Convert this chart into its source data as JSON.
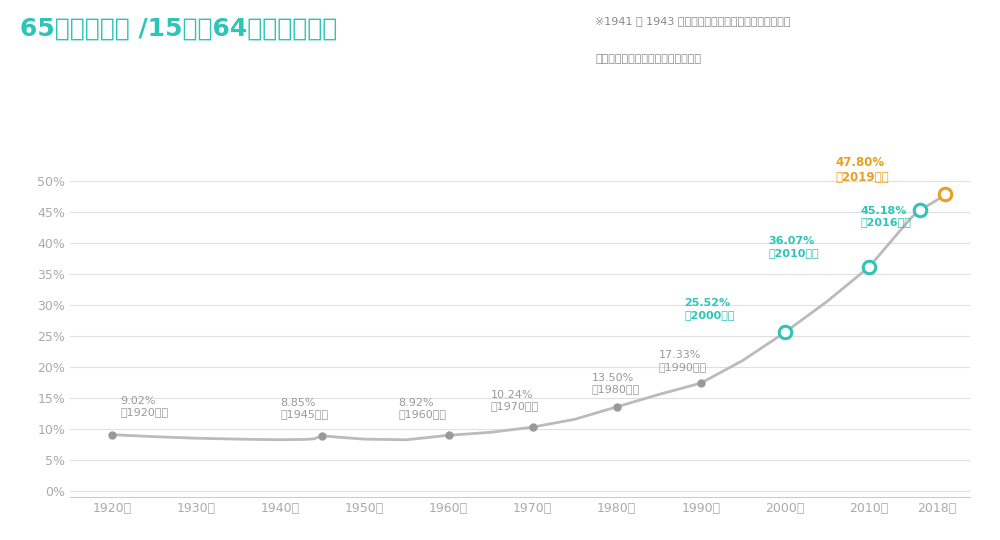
{
  "title": "65歳以上人口 /15歳〜64歳人口グラフ",
  "note_line1": "※1941 〜 1943 年は年齢別の推計は行われていない。",
  "note_line2": "この間の人口は年平均成長とした。",
  "title_color": "#2ec4b6",
  "note_color": "#888888",
  "background_color": "#ffffff",
  "years": [
    1920,
    1925,
    1930,
    1935,
    1940,
    1941,
    1942,
    1943,
    1944,
    1945,
    1947,
    1950,
    1955,
    1960,
    1965,
    1970,
    1975,
    1980,
    1985,
    1990,
    1995,
    2000,
    2005,
    2010,
    2015,
    2016,
    2017,
    2018,
    2019
  ],
  "values": [
    9.02,
    8.7,
    8.45,
    8.3,
    8.2,
    8.22,
    8.24,
    8.26,
    8.35,
    8.85,
    8.6,
    8.3,
    8.2,
    8.92,
    9.4,
    10.24,
    11.5,
    13.5,
    15.5,
    17.33,
    21.0,
    25.52,
    30.5,
    36.07,
    44.0,
    45.18,
    46.0,
    46.8,
    47.8
  ],
  "line_color": "#bbbbbb",
  "highlight_years": [
    1920,
    1945,
    1960,
    1970,
    1980,
    1990,
    2000,
    2010,
    2016,
    2019
  ],
  "highlight_values": [
    9.02,
    8.85,
    8.92,
    10.24,
    13.5,
    17.33,
    25.52,
    36.07,
    45.18,
    47.8
  ],
  "gray_color": "#999999",
  "teal_color": "#2ec4b6",
  "gold_color": "#e8a020",
  "xtick_labels": [
    "1920年",
    "1930年",
    "1940年",
    "1950年",
    "1960年",
    "1970年",
    "1980年",
    "1990年",
    "2000年",
    "2010年",
    "2018年"
  ],
  "xtick_positions": [
    1920,
    1930,
    1940,
    1950,
    1960,
    1970,
    1980,
    1990,
    2000,
    2010,
    2018
  ],
  "ytick_values": [
    0,
    5,
    10,
    15,
    20,
    25,
    30,
    35,
    40,
    45,
    50
  ],
  "ylim": [
    -1,
    53
  ],
  "xlim": [
    1915,
    2022
  ]
}
